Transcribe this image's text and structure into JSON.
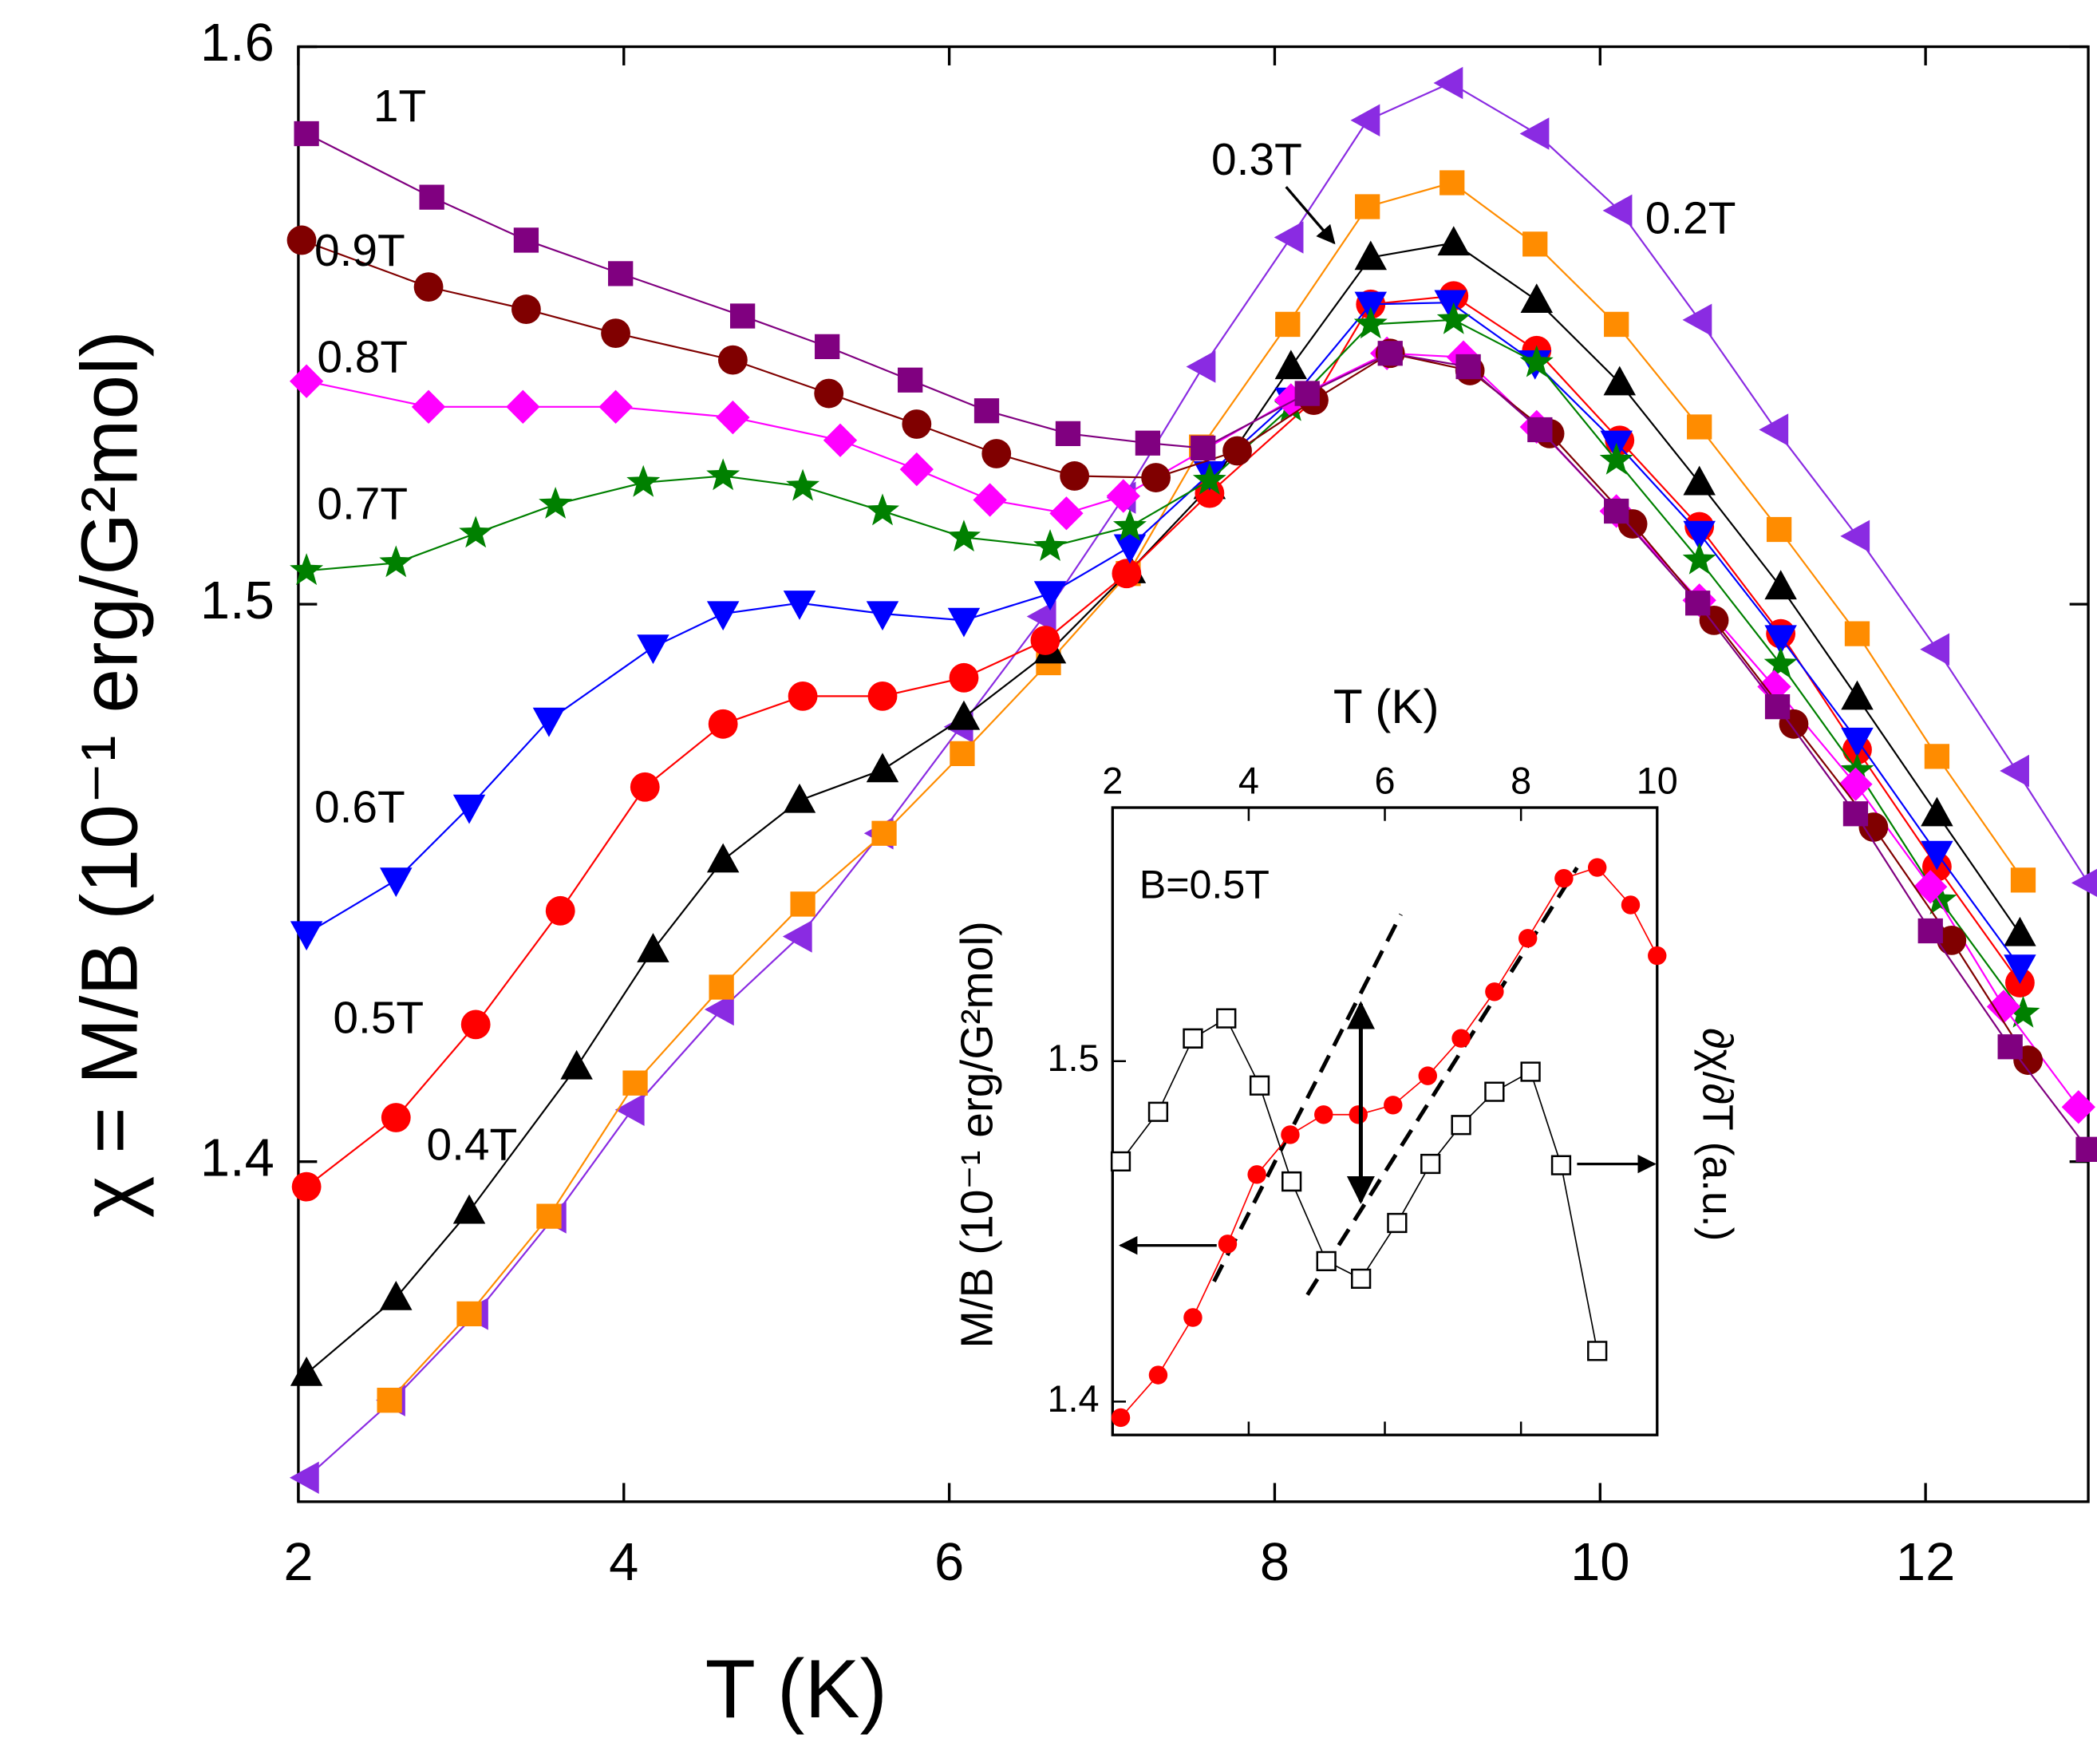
{
  "chart_data": {
    "type": "line",
    "xlabel": "T (K)",
    "ylabel": "χ = M/B (10⁻¹ erg/G²mol)",
    "xlim": [
      2,
      13
    ],
    "xticks": [
      2,
      4,
      6,
      8,
      10,
      12
    ],
    "ylim": [
      1.339,
      1.6
    ],
    "yticks": [
      1.4,
      1.5,
      1.6
    ],
    "series": [
      {
        "name": "1T",
        "color": "#800080",
        "marker": "square",
        "x": [
          2.05,
          2.82,
          3.4,
          3.98,
          4.73,
          5.25,
          5.76,
          6.23,
          6.73,
          7.22,
          7.56,
          8.2,
          8.71,
          9.19,
          9.63,
          10.1,
          10.6,
          11.09,
          11.57,
          12.03,
          12.52,
          13.0
        ],
        "values": [
          1.5844,
          1.573,
          1.5653,
          1.5593,
          1.5517,
          1.5462,
          1.5402,
          1.5347,
          1.5306,
          1.5289,
          1.528,
          1.5378,
          1.545,
          1.5426,
          1.5313,
          1.5167,
          1.5002,
          1.4816,
          1.4624,
          1.4414,
          1.4206,
          1.4022
        ]
      },
      {
        "name": "0.9T",
        "color": "#800000",
        "marker": "circle",
        "x": [
          2.02,
          2.8,
          3.4,
          3.95,
          4.67,
          5.26,
          5.8,
          6.29,
          6.77,
          7.27,
          7.77,
          8.24,
          8.71,
          9.2,
          9.69,
          10.2,
          10.7,
          11.19,
          11.68,
          12.16,
          12.63
        ],
        "values": [
          1.5653,
          1.5569,
          1.5529,
          1.5486,
          1.5438,
          1.5378,
          1.5323,
          1.527,
          1.523,
          1.5227,
          1.5275,
          1.5366,
          1.545,
          1.5419,
          1.5306,
          1.5144,
          1.4971,
          1.4785,
          1.46,
          1.4397,
          1.4182
        ]
      },
      {
        "name": "0.8T",
        "color": "#ff00ff",
        "marker": "diamond",
        "x": [
          2.05,
          2.8,
          3.38,
          3.95,
          4.67,
          5.33,
          5.8,
          6.25,
          6.72,
          7.07,
          8.1,
          8.69,
          9.16,
          9.61,
          10.1,
          10.61,
          11.07,
          11.57,
          12.03,
          12.48,
          12.94
        ],
        "values": [
          1.54,
          1.5354,
          1.5354,
          1.5354,
          1.5335,
          1.5294,
          1.5242,
          1.5187,
          1.5163,
          1.5194,
          1.5366,
          1.545,
          1.5443,
          1.5318,
          1.5167,
          1.5007,
          1.4852,
          1.4677,
          1.4493,
          1.4278,
          1.4098
        ]
      },
      {
        "name": "0.7T",
        "color": "#008000",
        "marker": "star",
        "x": [
          2.05,
          2.6,
          3.09,
          3.58,
          4.12,
          4.61,
          5.1,
          5.59,
          6.09,
          6.62,
          7.11,
          7.6,
          8.1,
          8.59,
          9.1,
          9.61,
          10.1,
          10.61,
          11.11,
          11.58,
          12.09,
          12.6
        ],
        "values": [
          1.506,
          1.5074,
          1.5127,
          1.5179,
          1.5218,
          1.523,
          1.5211,
          1.5167,
          1.512,
          1.5103,
          1.5139,
          1.5222,
          1.5354,
          1.5502,
          1.551,
          1.5433,
          1.5258,
          1.5079,
          1.4892,
          1.4701,
          1.4469,
          1.4266
        ]
      },
      {
        "name": "0.6T",
        "color": "#0000ff",
        "marker": "triangle-down",
        "x": [
          2.05,
          2.6,
          3.05,
          3.54,
          4.18,
          4.61,
          5.08,
          5.59,
          6.09,
          6.62,
          7.11,
          7.6,
          8.1,
          8.59,
          9.08,
          9.6,
          10.1,
          10.61,
          11.11,
          11.58,
          12.07,
          12.58
        ],
        "values": [
          1.4409,
          1.4505,
          1.4636,
          1.4792,
          1.4923,
          1.4983,
          1.5002,
          1.4983,
          1.4971,
          1.5019,
          1.5103,
          1.5234,
          1.5366,
          1.5538,
          1.5541,
          1.5433,
          1.5289,
          1.5127,
          1.494,
          1.4756,
          1.4553,
          1.4349
        ]
      },
      {
        "name": "0.5T",
        "color": "#ff0000",
        "marker": "circle",
        "x": [
          2.05,
          2.6,
          3.09,
          3.61,
          4.13,
          4.61,
          5.1,
          5.59,
          6.09,
          6.59,
          7.09,
          7.6,
          8.24,
          8.59,
          9.1,
          9.61,
          10.12,
          10.61,
          11.11,
          11.58,
          12.07,
          12.58
        ],
        "values": [
          1.3955,
          1.4079,
          1.4246,
          1.445,
          1.4672,
          1.4785,
          1.4835,
          1.4835,
          1.4868,
          1.4935,
          1.5055,
          1.5199,
          1.5366,
          1.5538,
          1.5553,
          1.5455,
          1.5294,
          1.5139,
          1.4947,
          1.4739,
          1.4529,
          1.4321
        ]
      },
      {
        "name": "0.4T",
        "color": "#000000",
        "marker": "triangle-up",
        "x": [
          2.05,
          2.6,
          3.05,
          3.71,
          4.18,
          4.61,
          5.08,
          5.59,
          6.09,
          6.62,
          7.11,
          7.6,
          8.1,
          8.59,
          9.1,
          9.61,
          10.12,
          10.61,
          11.11,
          11.58,
          12.07,
          12.58
        ],
        "values": [
          1.362,
          1.3756,
          1.3911,
          1.417,
          1.438,
          1.4541,
          1.4648,
          1.4703,
          1.4797,
          1.4916,
          1.506,
          1.5211,
          1.5426,
          1.5622,
          1.5648,
          1.5545,
          1.5397,
          1.5218,
          1.5031,
          1.4833,
          1.4624,
          1.4409
        ]
      },
      {
        "name": "0.3T",
        "color": "#ff8c00",
        "marker": "square",
        "x": [
          2.56,
          3.05,
          3.54,
          4.07,
          4.6,
          5.1,
          5.6,
          6.08,
          6.61,
          7.1,
          7.55,
          8.08,
          8.57,
          9.09,
          9.6,
          10.1,
          10.61,
          11.1,
          11.58,
          12.07,
          12.6
        ],
        "values": [
          1.3572,
          1.3727,
          1.3902,
          1.4141,
          1.4313,
          1.4462,
          1.4589,
          1.4732,
          1.4895,
          1.5055,
          1.5282,
          1.5502,
          1.5713,
          1.5756,
          1.5646,
          1.5502,
          1.5318,
          1.5134,
          1.4947,
          1.4727,
          1.4505
        ]
      },
      {
        "name": "0.2T",
        "color": "#8a2be2",
        "marker": "triangle-left",
        "x": [
          2.05,
          2.58,
          3.09,
          3.57,
          4.05,
          4.6,
          5.08,
          5.58,
          6.07,
          6.58,
          7.07,
          7.56,
          8.1,
          8.57,
          9.08,
          9.61,
          10.12,
          10.61,
          11.08,
          11.58,
          12.07,
          12.56,
          13.0
        ],
        "values": [
          1.3433,
          1.3572,
          1.3727,
          1.39,
          1.4093,
          1.4273,
          1.4404,
          1.4589,
          1.478,
          1.4978,
          1.5191,
          1.5426,
          1.5658,
          1.5868,
          1.5935,
          1.5844,
          1.5706,
          1.551,
          1.5313,
          1.5122,
          1.4919,
          1.4701,
          1.45
        ]
      }
    ],
    "inset": {
      "type": "line",
      "annotation": "B=0.5T",
      "xlabel": "T (K)",
      "ylabel": "M/B (10⁻¹ erg/G²mol)",
      "y2label": "∂χ/∂T (a.u.)",
      "xlim": [
        2,
        10
      ],
      "xticks": [
        2,
        4,
        6,
        8,
        10
      ],
      "ylim": [
        1.3902,
        1.5745
      ],
      "yticks": [
        1.4,
        1.5
      ],
      "y2lim": [
        0,
        1
      ],
      "series": [
        {
          "color": "#ff0000",
          "marker": "circle",
          "x": [
            2.12,
            2.67,
            3.18,
            3.69,
            4.12,
            4.61,
            5.1,
            5.61,
            6.12,
            6.63,
            7.12,
            7.61,
            8.1,
            8.63,
            9.12,
            9.61,
            10.0
          ],
          "values": [
            1.3953,
            1.4078,
            1.4247,
            1.4463,
            1.4667,
            1.4784,
            1.4843,
            1.4843,
            1.4871,
            1.4957,
            1.5067,
            1.5204,
            1.5361,
            1.5537,
            1.5569,
            1.5459,
            1.531
          ]
        },
        {
          "color": "#000000",
          "marker": "open-square",
          "axis": "y2",
          "x": [
            2.12,
            2.67,
            3.18,
            3.67,
            4.16,
            4.63,
            5.14,
            5.65,
            6.18,
            6.67,
            7.12,
            7.61,
            8.14,
            8.59,
            9.12
          ],
          "values": [
            0.436,
            0.515,
            0.632,
            0.664,
            0.557,
            0.404,
            0.277,
            0.249,
            0.338,
            0.432,
            0.494,
            0.547,
            0.579,
            0.43,
            0.134
          ]
        }
      ]
    }
  }
}
